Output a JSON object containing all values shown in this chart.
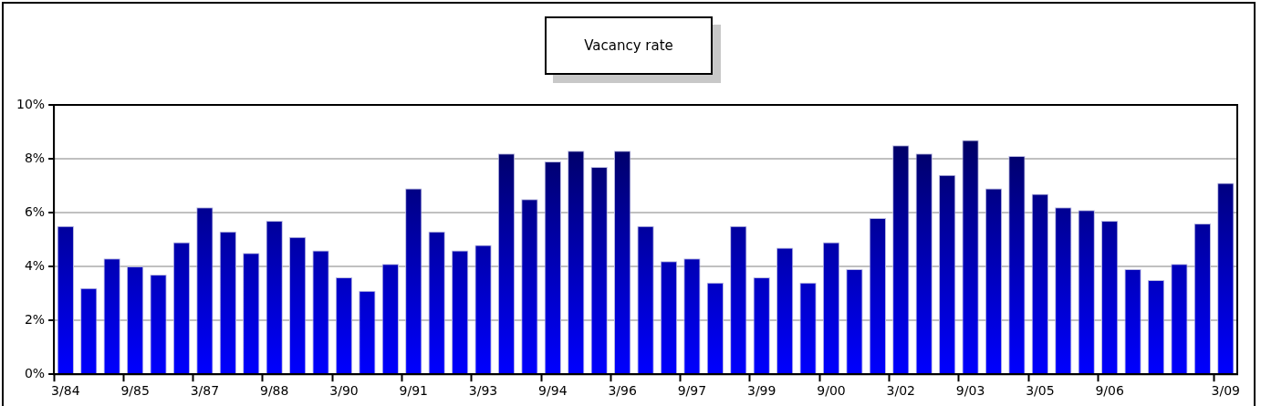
{
  "chart_data": {
    "type": "bar",
    "title": "Vacancy rate",
    "categories": [
      "3/84",
      null,
      null,
      "9/85",
      null,
      null,
      "3/87",
      null,
      null,
      "9/88",
      null,
      null,
      "3/90",
      null,
      null,
      "9/91",
      null,
      null,
      "3/93",
      null,
      null,
      "9/94",
      null,
      null,
      "3/96",
      null,
      null,
      "9/97",
      null,
      null,
      "3/99",
      null,
      null,
      "9/00",
      null,
      null,
      "3/02",
      null,
      null,
      "9/03",
      null,
      null,
      "3/05",
      null,
      null,
      "9/06",
      null,
      null,
      null,
      null,
      "3/09"
    ],
    "values": [
      5.5,
      3.2,
      4.3,
      4.0,
      3.7,
      4.9,
      6.2,
      5.3,
      4.5,
      5.7,
      5.1,
      4.6,
      3.6,
      3.1,
      4.1,
      6.9,
      5.3,
      4.6,
      4.8,
      8.2,
      6.5,
      7.9,
      8.3,
      7.7,
      8.3,
      5.5,
      4.2,
      4.3,
      3.4,
      5.5,
      3.6,
      4.7,
      3.4,
      4.9,
      3.9,
      5.8,
      8.5,
      8.2,
      7.4,
      8.7,
      6.9,
      8.1,
      6.7,
      6.2,
      6.1,
      5.7,
      3.9,
      3.5,
      4.1,
      5.6,
      7.1
    ],
    "color": "#0000ff",
    "ylim": [
      0,
      10
    ],
    "yticks": [
      {
        "value": 0,
        "label": "0%"
      },
      {
        "value": 2,
        "label": "2%"
      },
      {
        "value": 4,
        "label": "4%"
      },
      {
        "value": 6,
        "label": "6%"
      },
      {
        "value": 8,
        "label": "8%"
      },
      {
        "value": 10,
        "label": "10%"
      }
    ],
    "grid": "y",
    "legend": false
  }
}
